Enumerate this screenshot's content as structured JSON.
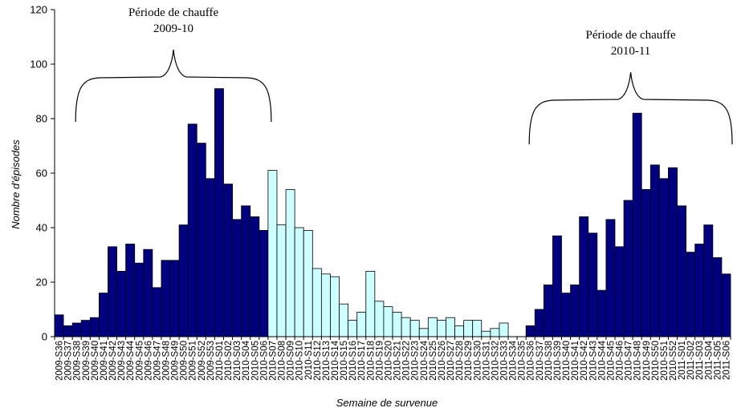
{
  "chart_data": {
    "type": "bar",
    "xlabel": "Semaine de survenue",
    "ylabel": "Nombre d'épisodes",
    "ylim": [
      0,
      120
    ],
    "yticks": [
      0,
      20,
      40,
      60,
      80,
      100,
      120
    ],
    "grid": false,
    "legend": "none",
    "colors": {
      "heating": "#000080",
      "other": "#ccffff",
      "edge": "#000000"
    },
    "categories": [
      "2009-S36",
      "2009-S37",
      "2009-S38",
      "2009-S39",
      "2009-S40",
      "2009-S41",
      "2009-S42",
      "2009-S43",
      "2009-S44",
      "2009-S45",
      "2009-S46",
      "2009-S47",
      "2009-S48",
      "2009-S49",
      "2009-S50",
      "2009-S51",
      "2009-S52",
      "2009-S53",
      "2010-S01",
      "2010-S02",
      "2010-S03",
      "2010-S04",
      "2010-S05",
      "2010-S06",
      "2010-S07",
      "2010-S08",
      "2010-S09",
      "2010-S10",
      "2010-S11",
      "2010-S12",
      "2010-S13",
      "2010-S14",
      "2010-S15",
      "2010-S16",
      "2010-S17",
      "2010-S18",
      "2010-S19",
      "2010-S20",
      "2010-S21",
      "2010-S22",
      "2010-S23",
      "2010-S24",
      "2010-S25",
      "2010-S26",
      "2010-S27",
      "2010-S28",
      "2010-S29",
      "2010-S30",
      "2010-S31",
      "2010-S32",
      "2010-S33",
      "2010-S34",
      "2010-S35",
      "2010-S36",
      "2010-S37",
      "2010-S38",
      "2010-S39",
      "2010-S40",
      "2010-S41",
      "2010-S42",
      "2010-S43",
      "2010-S44",
      "2010-S45",
      "2010-S46",
      "2010-S47",
      "2010-S48",
      "2010-S49",
      "2010-S50",
      "2010-S51",
      "2010-S52",
      "2011-S01",
      "2011-S02",
      "2011-S03",
      "2011-S04",
      "2011-S05",
      "2011-S06"
    ],
    "values": [
      8,
      4,
      5,
      6,
      7,
      16,
      33,
      24,
      34,
      27,
      32,
      18,
      28,
      28,
      41,
      78,
      71,
      58,
      91,
      56,
      43,
      48,
      44,
      39,
      61,
      41,
      54,
      40,
      39,
      25,
      23,
      22,
      12,
      6,
      9,
      24,
      13,
      11,
      9,
      7,
      6,
      3,
      7,
      6,
      7,
      4,
      6,
      6,
      2,
      3,
      5,
      0,
      0,
      4,
      10,
      19,
      37,
      16,
      19,
      44,
      38,
      17,
      43,
      33,
      50,
      82,
      54,
      63,
      58,
      62,
      48,
      31,
      34,
      41,
      29,
      23
    ],
    "period": [
      "heating",
      "heating",
      "heating",
      "heating",
      "heating",
      "heating",
      "heating",
      "heating",
      "heating",
      "heating",
      "heating",
      "heating",
      "heating",
      "heating",
      "heating",
      "heating",
      "heating",
      "heating",
      "heating",
      "heating",
      "heating",
      "heating",
      "heating",
      "heating",
      "other",
      "other",
      "other",
      "other",
      "other",
      "other",
      "other",
      "other",
      "other",
      "other",
      "other",
      "other",
      "other",
      "other",
      "other",
      "other",
      "other",
      "other",
      "other",
      "other",
      "other",
      "other",
      "other",
      "other",
      "other",
      "other",
      "other",
      "other",
      "other",
      "heating",
      "heating",
      "heating",
      "heating",
      "heating",
      "heating",
      "heating",
      "heating",
      "heating",
      "heating",
      "heating",
      "heating",
      "heating",
      "heating",
      "heating",
      "heating",
      "heating",
      "heating",
      "heating",
      "heating",
      "heating",
      "heating",
      "heating"
    ],
    "annotations": [
      {
        "line1": "Période de chauffe",
        "line2": "2009-10",
        "from": "2009-S38",
        "to": "2010-S06"
      },
      {
        "line1": "Période de chauffe",
        "line2": "2010-11",
        "from": "2010-S36",
        "to": "2011-S06"
      }
    ]
  }
}
